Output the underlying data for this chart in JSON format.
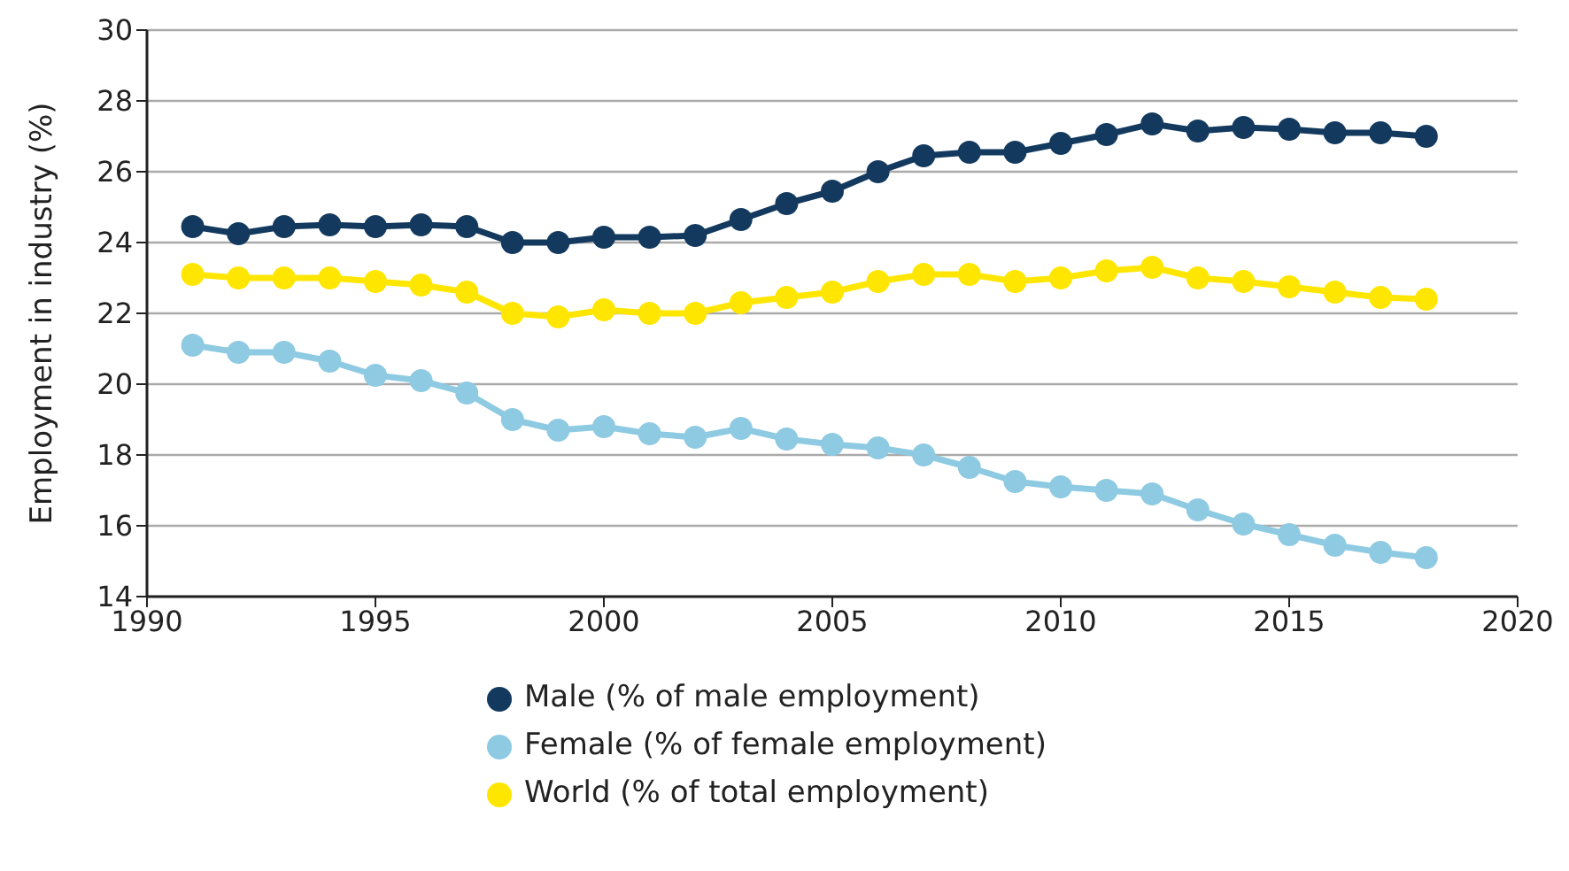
{
  "chart_data": {
    "type": "line",
    "ylabel": "Employment in industry (%)",
    "x": [
      1991,
      1992,
      1993,
      1994,
      1995,
      1996,
      1997,
      1998,
      1999,
      2000,
      2001,
      2002,
      2003,
      2004,
      2005,
      2006,
      2007,
      2008,
      2009,
      2010,
      2011,
      2012,
      2013,
      2014,
      2015,
      2016,
      2017,
      2018
    ],
    "series": [
      {
        "name": "Male (% of male employment)",
        "color": "#133a5e",
        "values": [
          24.45,
          24.25,
          24.45,
          24.5,
          24.45,
          24.5,
          24.45,
          24.0,
          24.0,
          24.15,
          24.15,
          24.2,
          24.65,
          25.1,
          25.45,
          26.0,
          26.45,
          26.55,
          26.55,
          26.8,
          27.05,
          27.35,
          27.15,
          27.25,
          27.2,
          27.1,
          27.1,
          27.0
        ]
      },
      {
        "name": "Female (% of female employment)",
        "color": "#8ecae2",
        "values": [
          21.1,
          20.9,
          20.9,
          20.65,
          20.25,
          20.1,
          19.75,
          19.0,
          18.7,
          18.8,
          18.6,
          18.5,
          18.75,
          18.45,
          18.3,
          18.2,
          18.0,
          17.65,
          17.25,
          17.1,
          17.0,
          16.9,
          16.45,
          16.05,
          15.75,
          15.45,
          15.25,
          15.1
        ]
      },
      {
        "name": "World (% of total employment)",
        "color": "#ffe600",
        "values": [
          23.1,
          23.0,
          23.0,
          23.0,
          22.9,
          22.8,
          22.6,
          22.0,
          21.9,
          22.1,
          22.0,
          22.0,
          22.3,
          22.45,
          22.6,
          22.9,
          23.1,
          23.1,
          22.9,
          23.0,
          23.2,
          23.3,
          23.0,
          22.9,
          22.75,
          22.6,
          22.45,
          22.4
        ]
      }
    ],
    "xlim": [
      1990,
      2020
    ],
    "xticks": [
      1990,
      1995,
      2000,
      2005,
      2010,
      2015,
      2020
    ],
    "ylim": [
      14,
      30
    ],
    "yticks": [
      14,
      16,
      18,
      20,
      22,
      24,
      26,
      28,
      30
    ],
    "grid": "y",
    "legend": "bottom",
    "marker": "circle",
    "line_style": "solid"
  }
}
